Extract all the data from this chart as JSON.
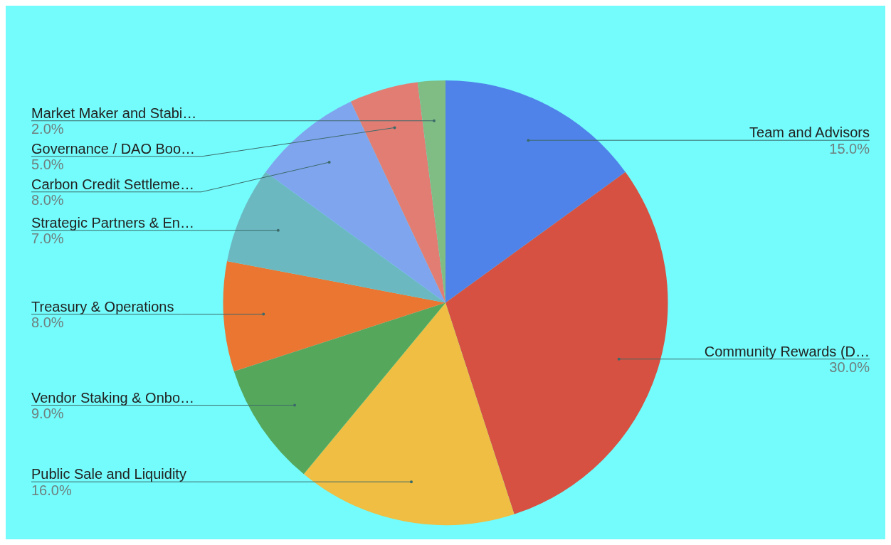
{
  "chart_data": {
    "type": "pie",
    "categories": [
      "Team and Advisors",
      "Community Rewards (D…",
      "Public Sale and Liquidity",
      "Vendor Staking & Onbo…",
      "Treasury & Operations",
      "Strategic Partners & En…",
      "Carbon Credit Settleme…",
      "Governance / DAO Boo…",
      "Market Maker and Stabi…"
    ],
    "values": [
      15,
      30,
      16,
      9,
      8,
      7,
      8,
      5,
      2
    ],
    "value_labels": [
      "15.0%",
      "30.0%",
      "16.0%",
      "9.0%",
      "8.0%",
      "7.0%",
      "8.0%",
      "5.0%",
      "2.0%"
    ],
    "colors": [
      "#5083ea",
      "#d65141",
      "#efbe42",
      "#55a75b",
      "#ea7632",
      "#6bb8c1",
      "#80a5ef",
      "#e27d73",
      "#7fbd85"
    ],
    "legend": false
  }
}
